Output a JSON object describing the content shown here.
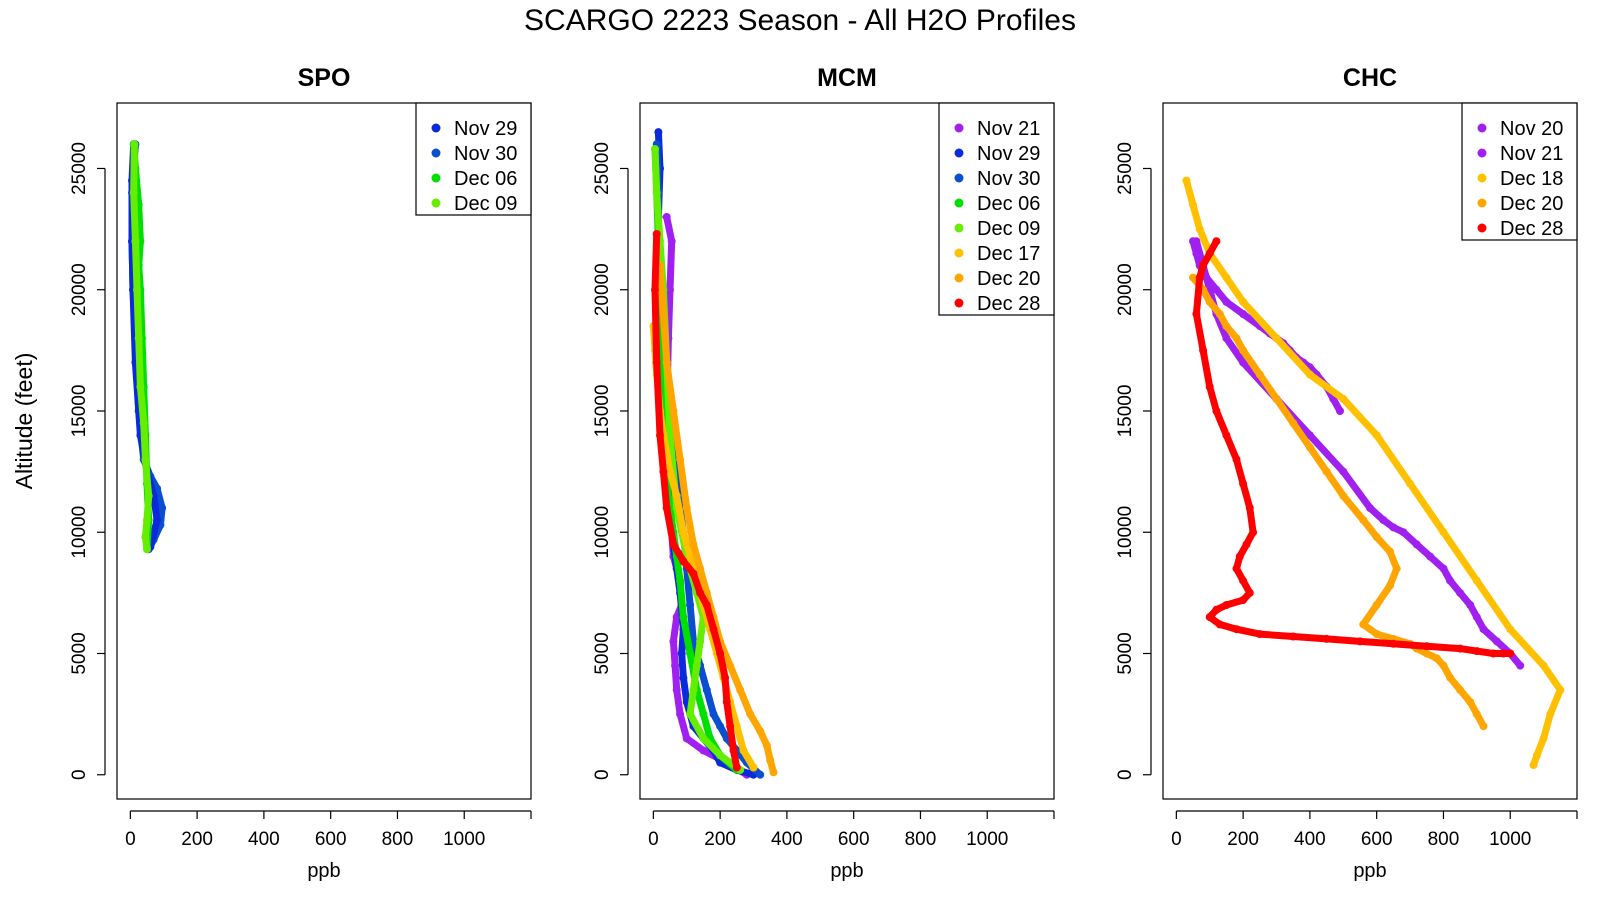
{
  "title": "SCARGO 2223 Season - All H2O Profiles",
  "colors": {
    "Nov 20": "#a020f0",
    "Nov 21": "#a020f0",
    "Nov 29": "#0b2bdb",
    "Nov 30": "#0b4fcf",
    "Dec 06": "#00e000",
    "Dec 09": "#66ee00",
    "Dec 17": "#ffc000",
    "Dec 18": "#ffc000",
    "Dec 20": "#ffa500",
    "Dec 28": "#ff0000"
  },
  "chart_data": [
    {
      "type": "scatter",
      "title": "SPO",
      "xlabel": "ppb",
      "ylabel": "Altitude (feet)",
      "xlim": [
        -40,
        1200
      ],
      "ylim": [
        -1000,
        27700
      ],
      "xticks": [
        0,
        200,
        400,
        600,
        800,
        1000
      ],
      "yticks": [
        0,
        5000,
        10000,
        15000,
        20000,
        25000
      ],
      "legend": [
        "Nov 29",
        "Nov 30",
        "Dec 06",
        "Dec 09"
      ],
      "series": [
        {
          "name": "Nov 30",
          "x": [
            15,
            10,
            5,
            5,
            8,
            15,
            25,
            40,
            60,
            80,
            95,
            90,
            70,
            55
          ],
          "y": [
            26000,
            25000,
            24000,
            22000,
            20000,
            18000,
            15000,
            13000,
            12300,
            11800,
            11000,
            10300,
            9700,
            9300
          ]
        },
        {
          "name": "Nov 29",
          "x": [
            10,
            5,
            5,
            8,
            15,
            30,
            50,
            70,
            80,
            60
          ],
          "y": [
            26000,
            24500,
            22000,
            20000,
            17000,
            14000,
            12500,
            11500,
            10500,
            9400
          ]
        },
        {
          "name": "Dec 06",
          "x": [
            10,
            15,
            25,
            30,
            25,
            30,
            35,
            40,
            45,
            50,
            55,
            50
          ],
          "y": [
            26000,
            25000,
            23500,
            22000,
            21000,
            20000,
            18000,
            16000,
            14000,
            12000,
            10500,
            9400
          ]
        },
        {
          "name": "Dec 09",
          "x": [
            12,
            10,
            15,
            20,
            25,
            30,
            40,
            45,
            55,
            50,
            45,
            50
          ],
          "y": [
            26000,
            24000,
            22000,
            20000,
            18000,
            16000,
            14500,
            13000,
            11500,
            10500,
            9800,
            9300
          ]
        }
      ]
    },
    {
      "type": "scatter",
      "title": "MCM",
      "xlabel": "ppb",
      "ylabel": "",
      "xlim": [
        -40,
        1200
      ],
      "ylim": [
        -1000,
        27700
      ],
      "xticks": [
        0,
        200,
        400,
        600,
        800,
        1000
      ],
      "yticks": [
        0,
        5000,
        10000,
        15000,
        20000,
        25000
      ],
      "legend": [
        "Nov 21",
        "Nov 29",
        "Nov 30",
        "Dec 06",
        "Dec 09",
        "Dec 17",
        "Dec 20",
        "Dec 28"
      ],
      "series": [
        {
          "name": "Nov 21",
          "x": [
            40,
            55,
            50,
            45,
            40,
            45,
            50,
            55,
            60,
            80,
            85,
            70,
            60,
            65,
            70,
            80,
            100,
            150,
            220,
            280
          ],
          "y": [
            23000,
            22000,
            20000,
            18000,
            15000,
            13000,
            11000,
            10000,
            9000,
            8000,
            7000,
            6500,
            5500,
            4500,
            3500,
            2500,
            1500,
            1000,
            500,
            0
          ]
        },
        {
          "name": "Nov 29",
          "x": [
            15,
            20,
            15,
            10,
            20,
            30,
            45,
            55,
            70,
            80,
            90,
            85,
            90,
            100,
            120,
            150,
            180,
            200,
            250,
            300
          ],
          "y": [
            26500,
            25000,
            23000,
            21000,
            18000,
            15000,
            12000,
            10000,
            8500,
            7500,
            6000,
            5000,
            4000,
            3000,
            2000,
            1500,
            1000,
            500,
            200,
            0
          ]
        },
        {
          "name": "Nov 30",
          "x": [
            10,
            15,
            15,
            20,
            30,
            50,
            70,
            90,
            100,
            110,
            120,
            140,
            160,
            180,
            200,
            220,
            250,
            280,
            320
          ],
          "y": [
            26000,
            24000,
            22000,
            20000,
            17000,
            14000,
            12000,
            10000,
            8500,
            7000,
            5500,
            4500,
            3500,
            2500,
            2000,
            1500,
            1000,
            500,
            0
          ]
        },
        {
          "name": "Dec 06",
          "x": [
            5,
            10,
            15,
            20,
            25,
            30,
            40,
            60,
            70,
            80,
            90,
            110,
            130,
            150,
            170,
            200,
            250
          ],
          "y": [
            25800,
            24000,
            22000,
            20000,
            18000,
            15000,
            12000,
            10000,
            9000,
            8000,
            6500,
            5000,
            3500,
            2500,
            1500,
            800,
            200
          ]
        },
        {
          "name": "Dec 09",
          "x": [
            5,
            10,
            20,
            30,
            40,
            50,
            70,
            100,
            130,
            150,
            140,
            130,
            120,
            110,
            150,
            200,
            260
          ],
          "y": [
            25800,
            24000,
            22000,
            20000,
            17000,
            14000,
            11000,
            9000,
            7500,
            6500,
            5500,
            4500,
            3500,
            2500,
            1500,
            800,
            200
          ]
        },
        {
          "name": "Dec 17",
          "x": [
            0,
            5,
            10,
            20,
            30,
            50,
            70,
            90,
            110,
            130,
            150,
            170,
            190,
            210,
            230,
            250,
            270,
            300
          ],
          "y": [
            18500,
            17500,
            16500,
            15000,
            14000,
            12500,
            11500,
            10000,
            9000,
            8000,
            7000,
            6000,
            5000,
            4000,
            3000,
            2000,
            1000,
            300
          ]
        },
        {
          "name": "Dec 20",
          "x": [
            20,
            30,
            40,
            60,
            80,
            100,
            120,
            140,
            160,
            180,
            200,
            230,
            260,
            290,
            320,
            340,
            350,
            360
          ],
          "y": [
            21000,
            19000,
            17000,
            15000,
            13000,
            11000,
            9500,
            8500,
            7500,
            6500,
            5500,
            4500,
            3500,
            2500,
            1800,
            1200,
            600,
            100
          ]
        },
        {
          "name": "Dec 28",
          "x": [
            10,
            5,
            10,
            20,
            30,
            40,
            60,
            90,
            120,
            140,
            160,
            180,
            200,
            215,
            220,
            230,
            240,
            250
          ],
          "y": [
            22300,
            20000,
            17000,
            14000,
            12500,
            11000,
            9500,
            8800,
            8300,
            7500,
            7000,
            6000,
            5000,
            4000,
            3000,
            2000,
            1000,
            300
          ]
        }
      ]
    },
    {
      "type": "scatter",
      "title": "CHC",
      "xlabel": "ppb",
      "ylabel": "",
      "xlim": [
        -40,
        1200
      ],
      "ylim": [
        -1000,
        27700
      ],
      "xticks": [
        0,
        200,
        400,
        600,
        800,
        1000
      ],
      "yticks": [
        0,
        5000,
        10000,
        15000,
        20000,
        25000
      ],
      "legend": [
        "Nov 20",
        "Nov 21",
        "Dec 18",
        "Dec 20",
        "Dec 28"
      ],
      "series": [
        {
          "name": "Nov 20",
          "x": [
            50,
            60,
            70,
            90,
            120,
            150,
            200,
            250,
            280,
            300,
            320,
            340,
            360,
            380,
            400,
            420,
            450,
            470,
            490
          ],
          "y": [
            22000,
            21500,
            21000,
            20500,
            20000,
            19500,
            19000,
            18500,
            18200,
            18000,
            17800,
            17500,
            17200,
            17000,
            16800,
            16500,
            16000,
            15500,
            15000
          ]
        },
        {
          "name": "Nov 21",
          "x": [
            60,
            80,
            100,
            120,
            150,
            200,
            300,
            400,
            500,
            580,
            620,
            650,
            680,
            720,
            760,
            800,
            820,
            850,
            880,
            900,
            920,
            960,
            1000,
            1030
          ],
          "y": [
            22000,
            21000,
            20000,
            19000,
            18000,
            17000,
            15500,
            14000,
            12500,
            11000,
            10500,
            10200,
            10000,
            9500,
            9000,
            8500,
            8000,
            7500,
            7000,
            6500,
            6000,
            5500,
            5000,
            4500
          ]
        },
        {
          "name": "Dec 18",
          "x": [
            30,
            50,
            70,
            100,
            150,
            200,
            300,
            400,
            500,
            600,
            700,
            800,
            900,
            1000,
            1100,
            1150,
            1120,
            1100,
            1080,
            1070
          ],
          "y": [
            24500,
            23500,
            22500,
            21500,
            20500,
            19500,
            18000,
            16500,
            15500,
            14000,
            12000,
            10000,
            8000,
            6000,
            4500,
            3500,
            2500,
            1500,
            800,
            400
          ]
        },
        {
          "name": "Dec 20",
          "x": [
            50,
            80,
            100,
            130,
            150,
            180,
            200,
            250,
            300,
            350,
            400,
            450,
            500,
            560,
            600,
            640,
            660,
            640,
            600,
            560,
            600,
            650,
            700,
            720,
            750,
            780,
            800,
            820,
            850,
            880,
            900,
            920
          ],
          "y": [
            20500,
            20000,
            19500,
            19000,
            18500,
            18000,
            17500,
            16500,
            15500,
            14500,
            13500,
            12500,
            11500,
            10500,
            9800,
            9200,
            8500,
            7800,
            7000,
            6200,
            5800,
            5600,
            5400,
            5200,
            5000,
            4800,
            4500,
            4000,
            3500,
            3000,
            2500,
            2000
          ]
        },
        {
          "name": "Dec 28",
          "x": [
            120,
            100,
            80,
            70,
            60,
            80,
            100,
            120,
            150,
            180,
            200,
            220,
            230,
            210,
            190,
            180,
            200,
            220,
            200,
            150,
            120,
            100,
            130,
            180,
            250,
            350,
            450,
            550,
            650,
            750,
            850,
            900,
            950,
            980,
            1000
          ],
          "y": [
            22000,
            21500,
            21000,
            20500,
            19000,
            17500,
            16000,
            15000,
            14000,
            13000,
            12000,
            11000,
            10000,
            9500,
            9000,
            8500,
            8000,
            7500,
            7200,
            7000,
            6800,
            6500,
            6200,
            6000,
            5800,
            5700,
            5600,
            5500,
            5400,
            5300,
            5200,
            5100,
            5000,
            5000,
            5000
          ]
        }
      ]
    }
  ]
}
